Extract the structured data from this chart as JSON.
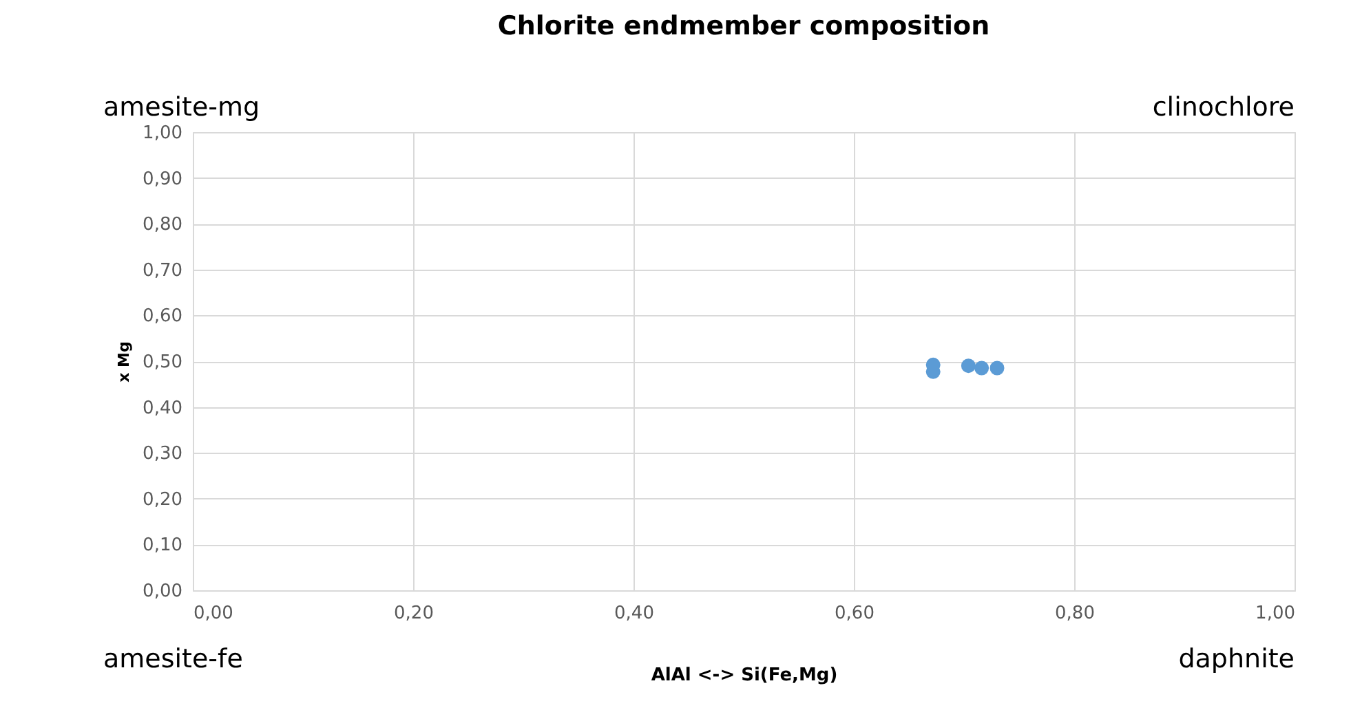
{
  "chart_data": {
    "type": "scatter",
    "title": "Chlorite endmember composition",
    "xlabel": "AlAl <-> Si(Fe,Mg)",
    "ylabel": "x Mg",
    "x": [
      0.672,
      0.672,
      0.704,
      0.716,
      0.73
    ],
    "series": [
      {
        "color": "#5b9bd5",
        "values": [
          0.477,
          0.492,
          0.49,
          0.485,
          0.485
        ]
      }
    ],
    "xlim": [
      0,
      1
    ],
    "ylim": [
      0,
      1
    ],
    "xticks": [
      {
        "value": 0,
        "label": "0,00"
      },
      {
        "value": 0.2,
        "label": "0,20"
      },
      {
        "value": 0.4,
        "label": "0,40"
      },
      {
        "value": 0.6,
        "label": "0,60"
      },
      {
        "value": 0.8,
        "label": "0,80"
      },
      {
        "value": 1,
        "label": "1,00"
      }
    ],
    "yticks": [
      {
        "value": 0,
        "label": "0,00"
      },
      {
        "value": 0.1,
        "label": "0,10"
      },
      {
        "value": 0.2,
        "label": "0,20"
      },
      {
        "value": 0.3,
        "label": "0,30"
      },
      {
        "value": 0.4,
        "label": "0,40"
      },
      {
        "value": 0.5,
        "label": "0,50"
      },
      {
        "value": 0.6,
        "label": "0,60"
      },
      {
        "value": 0.7,
        "label": "0,70"
      },
      {
        "value": 0.8,
        "label": "0,80"
      },
      {
        "value": 0.9,
        "label": "0,90"
      },
      {
        "value": 1,
        "label": "1,00"
      }
    ],
    "annotations": [
      "amesite-mg",
      "clinochlore",
      "amesite-fe",
      "daphnite"
    ],
    "grid": true,
    "marker": "circle"
  }
}
